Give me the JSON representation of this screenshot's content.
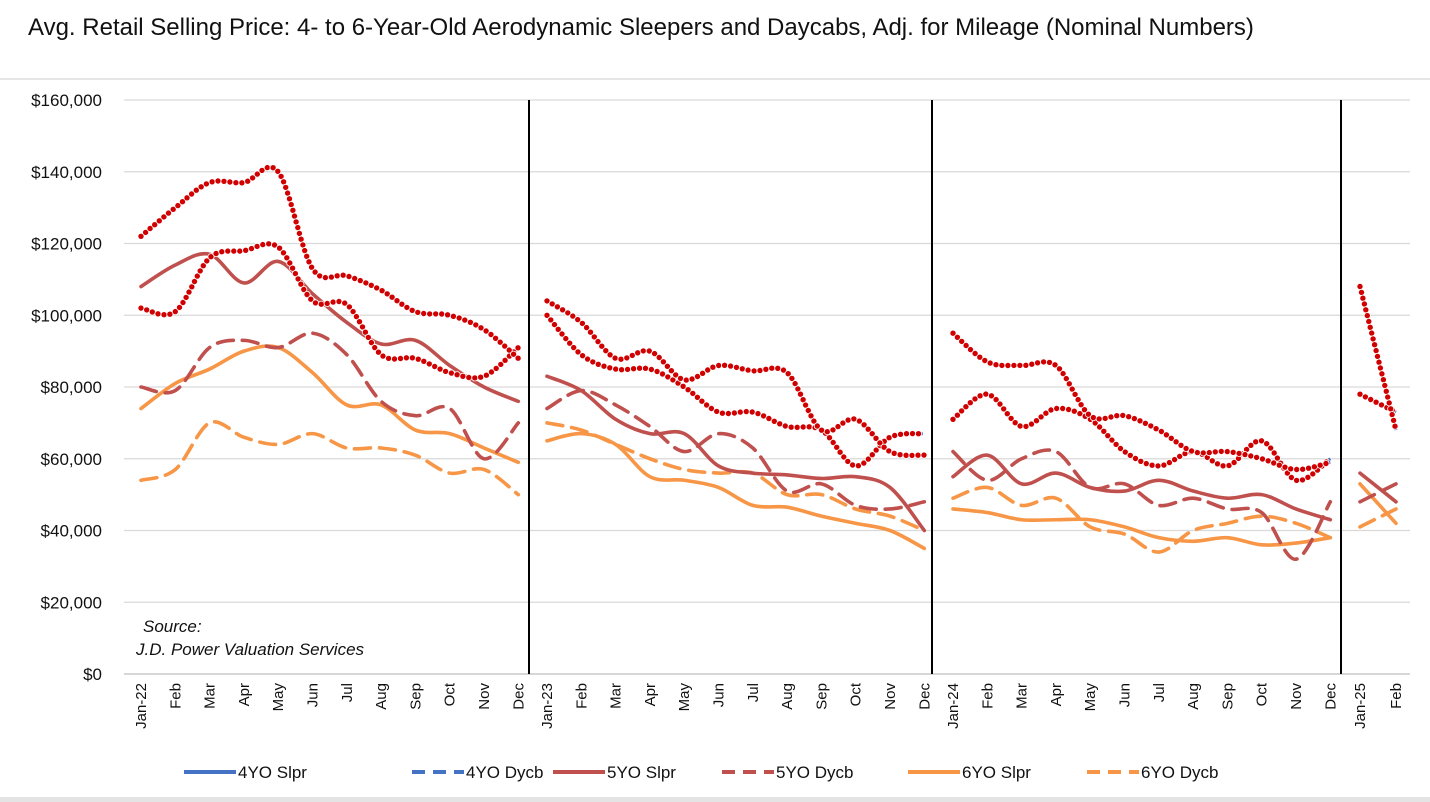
{
  "chart_data": {
    "type": "line",
    "title": "Avg. Retail Selling Price: 4- to 6-Year-Old Aerodynamic Sleepers and Daycabs, Adj. for Mileage (Nominal Numbers)",
    "xlabel": "",
    "ylabel": "",
    "ylim": [
      0,
      160000
    ],
    "yticks": [
      "$0",
      "$20,000",
      "$40,000",
      "$60,000",
      "$80,000",
      "$100,000",
      "$120,000",
      "$140,000",
      "$160,000"
    ],
    "grid": true,
    "legend_position": "bottom",
    "source_note": [
      "Source:",
      "J.D. Power Valuation Services"
    ],
    "segments": [
      {
        "year": "2022",
        "labels": [
          "Jan-22",
          "Feb",
          "Mar",
          "Apr",
          "May",
          "Jun",
          "Jul",
          "Aug",
          "Sep",
          "Oct",
          "Nov",
          "Dec"
        ]
      },
      {
        "year": "2023",
        "labels": [
          "Jan-23",
          "Feb",
          "Mar",
          "Apr",
          "May",
          "Jun",
          "Jul",
          "Aug",
          "Sep",
          "Oct",
          "Nov",
          "Dec"
        ]
      },
      {
        "year": "2024",
        "labels": [
          "Jan-24",
          "Feb",
          "Mar",
          "Apr",
          "May",
          "Jun",
          "Jul",
          "Aug",
          "Sep",
          "Oct",
          "Nov",
          "Dec"
        ]
      },
      {
        "year": "2025",
        "labels": [
          "Jan-25",
          "Feb"
        ]
      }
    ],
    "series": [
      {
        "name": "4YO Slpr",
        "color": "#4472c4",
        "dash": false,
        "marker": "dots-red",
        "values": [
          [
            122000,
            130000,
            137000,
            137000,
            140000,
            113000,
            111000,
            107000,
            101000,
            100000,
            96000,
            88000
          ],
          [
            104000,
            98000,
            88000,
            90000,
            82000,
            86000,
            84500,
            84000,
            68000,
            71000,
            62000,
            61000
          ],
          [
            95000,
            87000,
            86000,
            86000,
            72000,
            72000,
            68000,
            62000,
            62000,
            60000,
            57000,
            59000
          ],
          [
            108000,
            68000
          ]
        ]
      },
      {
        "name": "4YO Dycb",
        "color": "#4472c4",
        "dash": true,
        "marker": "dots-red",
        "values": [
          [
            102000,
            101000,
            116000,
            118000,
            119000,
            104000,
            103000,
            89000,
            88000,
            84000,
            83000,
            91000
          ],
          [
            100000,
            89000,
            85000,
            85000,
            80000,
            73000,
            73000,
            69000,
            68000,
            58000,
            66000,
            67000
          ],
          [
            71000,
            78000,
            69000,
            74000,
            71000,
            62000,
            58000,
            62000,
            58000,
            65000,
            54000,
            60000
          ],
          [
            78000,
            73000
          ]
        ]
      },
      {
        "name": "5YO Slpr",
        "color": "#c0504d",
        "dash": false,
        "marker": "none",
        "values": [
          [
            108000,
            114000,
            117000,
            109000,
            115000,
            106000,
            98000,
            92000,
            93000,
            86000,
            80000,
            76000
          ],
          [
            83000,
            79000,
            71000,
            67000,
            67000,
            58000,
            56000,
            55500,
            54500,
            55000,
            52000,
            40000
          ],
          [
            55000,
            61000,
            53000,
            56000,
            52000,
            51000,
            54000,
            51000,
            49000,
            50000,
            46000,
            43000
          ],
          [
            56000,
            48000
          ]
        ]
      },
      {
        "name": "5YO Dycb",
        "color": "#c0504d",
        "dash": true,
        "marker": "none",
        "values": [
          [
            80000,
            79000,
            91000,
            93000,
            91000,
            95000,
            89000,
            76000,
            72000,
            74000,
            60000,
            70000
          ],
          [
            74000,
            79000,
            75000,
            69000,
            62000,
            67000,
            63000,
            51000,
            53000,
            47000,
            46000,
            48000
          ],
          [
            62000,
            54000,
            60000,
            62000,
            52000,
            53000,
            47000,
            49000,
            46000,
            45000,
            32000,
            48000
          ],
          [
            48000,
            53000
          ]
        ]
      },
      {
        "name": "6YO Slpr",
        "color": "#f79646",
        "dash": false,
        "marker": "none",
        "values": [
          [
            74000,
            81000,
            85000,
            90000,
            91000,
            84000,
            75000,
            75000,
            68000,
            67000,
            63000,
            59000
          ],
          [
            65000,
            67000,
            64000,
            55000,
            54000,
            52000,
            47000,
            46500,
            44000,
            42000,
            40000,
            35000
          ],
          [
            46000,
            45000,
            43000,
            43000,
            43000,
            41000,
            38000,
            37000,
            38000,
            36000,
            36500,
            38000
          ],
          [
            53000,
            42000
          ]
        ]
      },
      {
        "name": "6YO Dycb",
        "color": "#f79646",
        "dash": true,
        "marker": "none",
        "values": [
          [
            54000,
            57000,
            70000,
            66000,
            64000,
            67000,
            63000,
            63000,
            61000,
            56000,
            57000,
            50000
          ],
          [
            70000,
            68000,
            64000,
            60000,
            57000,
            56000,
            56000,
            50000,
            50000,
            46000,
            44000,
            40000
          ],
          [
            49000,
            52000,
            47000,
            49000,
            41000,
            39000,
            34000,
            40000,
            42000,
            44000,
            42000,
            38000
          ],
          [
            41000,
            46000
          ]
        ]
      }
    ]
  }
}
